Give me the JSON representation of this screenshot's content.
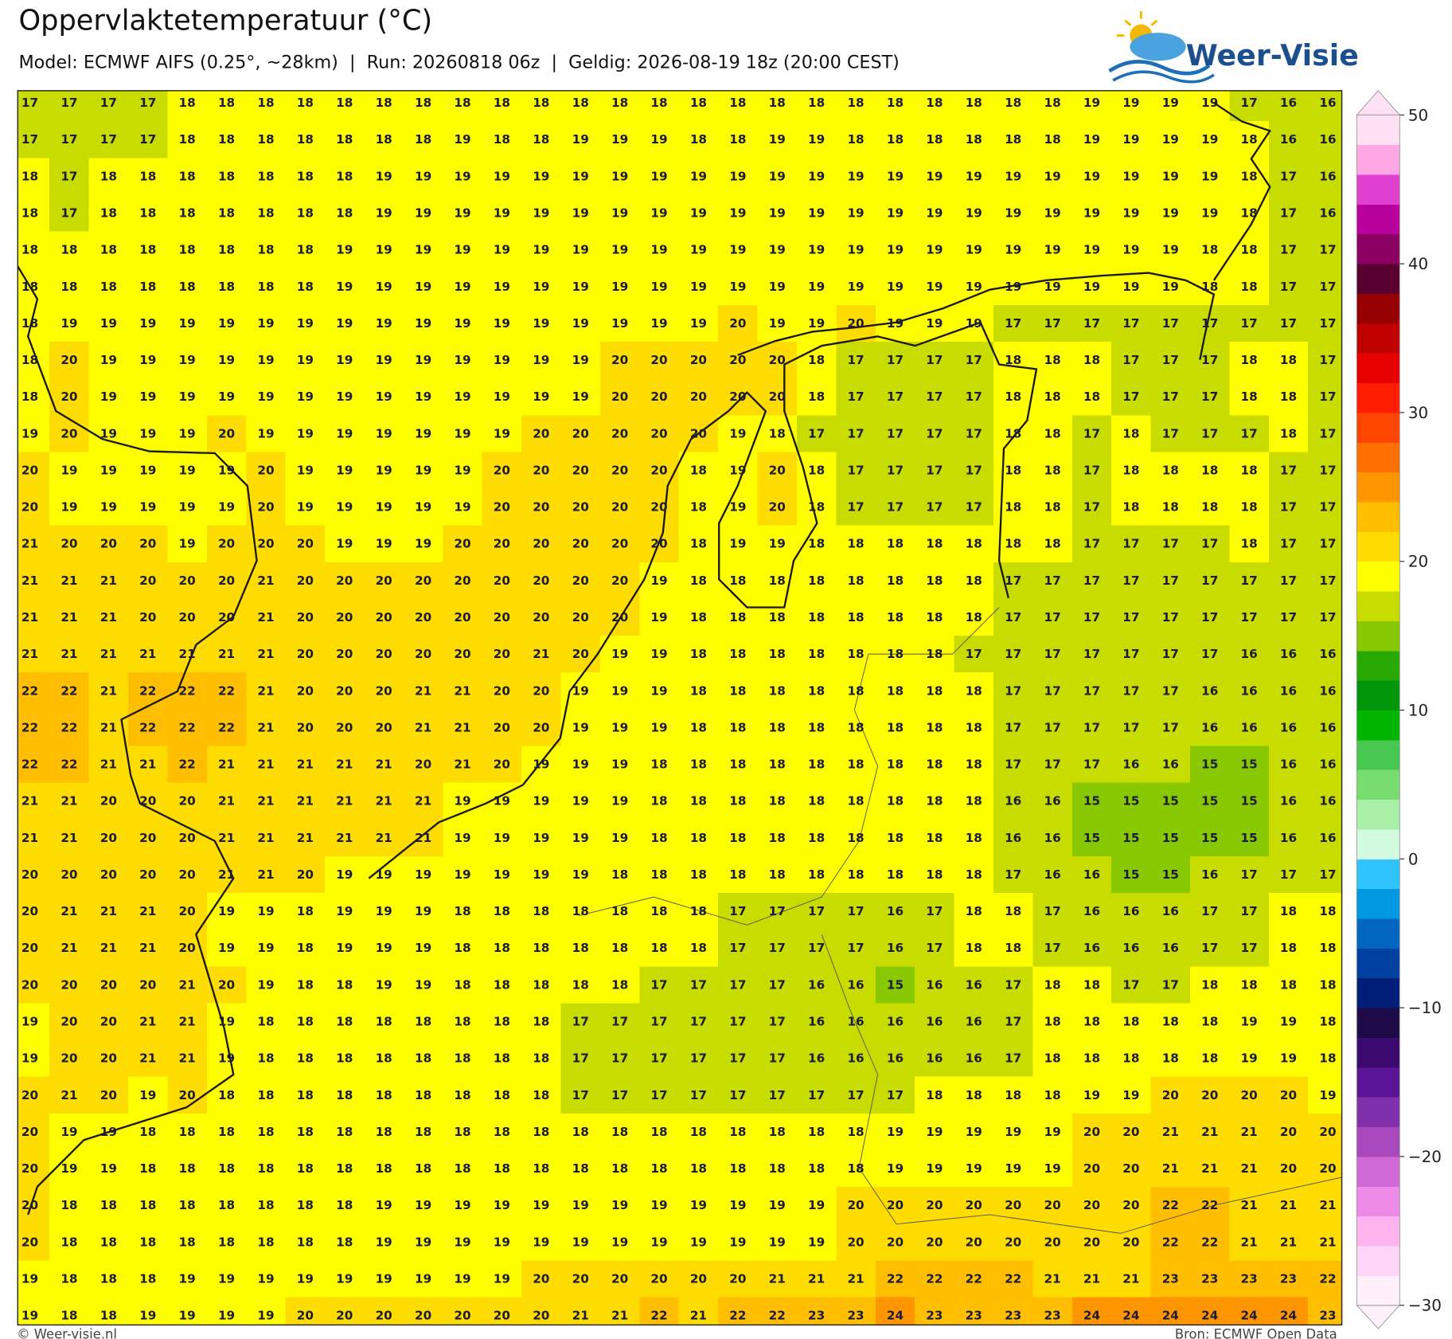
{
  "header": {
    "title": "Oppervlaktetemperatuur (°C)",
    "subtitle": "Model: ECMWF AIFS (0.25°, ~28km)  |  Run: 20260818 06z  |  Geldig: 2026-08-19 18z (20:00 CEST)"
  },
  "logo": "Weer-Visie",
  "grid": {
    "rows": [
      [
        17,
        17,
        17,
        17,
        18,
        18,
        18,
        18,
        18,
        18,
        18,
        18,
        18,
        18,
        18,
        18,
        18,
        18,
        18,
        18,
        18,
        18,
        18,
        18,
        18,
        18,
        18,
        19,
        19,
        19,
        19,
        17,
        16,
        16
      ],
      [
        17,
        17,
        17,
        17,
        18,
        18,
        18,
        18,
        18,
        18,
        18,
        19,
        18,
        18,
        19,
        19,
        19,
        18,
        18,
        19,
        19,
        18,
        18,
        18,
        18,
        18,
        18,
        19,
        19,
        19,
        19,
        18,
        16,
        16
      ],
      [
        18,
        17,
        18,
        18,
        18,
        18,
        18,
        18,
        18,
        19,
        19,
        19,
        19,
        19,
        19,
        19,
        19,
        19,
        19,
        19,
        19,
        19,
        19,
        19,
        19,
        19,
        19,
        19,
        19,
        19,
        19,
        18,
        17,
        16
      ],
      [
        18,
        17,
        18,
        18,
        18,
        18,
        18,
        18,
        18,
        19,
        19,
        19,
        19,
        19,
        19,
        19,
        19,
        19,
        19,
        19,
        19,
        19,
        19,
        19,
        19,
        19,
        19,
        19,
        19,
        19,
        19,
        18,
        17,
        16
      ],
      [
        18,
        18,
        18,
        18,
        18,
        18,
        18,
        18,
        19,
        19,
        19,
        19,
        19,
        19,
        19,
        19,
        19,
        19,
        19,
        19,
        19,
        19,
        19,
        19,
        19,
        19,
        19,
        19,
        19,
        19,
        18,
        18,
        17,
        17
      ],
      [
        18,
        18,
        18,
        18,
        18,
        18,
        18,
        18,
        19,
        19,
        19,
        19,
        19,
        19,
        19,
        19,
        19,
        19,
        19,
        19,
        19,
        19,
        19,
        19,
        19,
        19,
        19,
        19,
        19,
        19,
        18,
        18,
        17,
        17
      ],
      [
        18,
        19,
        19,
        19,
        19,
        19,
        19,
        19,
        19,
        19,
        19,
        19,
        19,
        19,
        19,
        19,
        19,
        19,
        20,
        19,
        19,
        20,
        19,
        19,
        19,
        17,
        17,
        17,
        17,
        17,
        17,
        17,
        17,
        17
      ],
      [
        18,
        20,
        19,
        19,
        19,
        19,
        19,
        19,
        19,
        19,
        19,
        19,
        19,
        19,
        19,
        20,
        20,
        20,
        20,
        20,
        18,
        17,
        17,
        17,
        17,
        18,
        18,
        18,
        17,
        17,
        17,
        18,
        18,
        17
      ],
      [
        18,
        20,
        19,
        19,
        19,
        19,
        19,
        19,
        19,
        19,
        19,
        19,
        19,
        19,
        19,
        20,
        20,
        20,
        20,
        20,
        18,
        17,
        17,
        17,
        17,
        18,
        18,
        18,
        17,
        17,
        17,
        18,
        18,
        17
      ],
      [
        19,
        20,
        19,
        19,
        19,
        20,
        19,
        19,
        19,
        19,
        19,
        19,
        19,
        20,
        20,
        20,
        20,
        20,
        19,
        18,
        17,
        17,
        17,
        17,
        17,
        18,
        18,
        17,
        18,
        17,
        17,
        17,
        18,
        17
      ],
      [
        20,
        19,
        19,
        19,
        19,
        19,
        20,
        19,
        19,
        19,
        19,
        19,
        20,
        20,
        20,
        20,
        20,
        18,
        19,
        20,
        18,
        17,
        17,
        17,
        17,
        18,
        18,
        17,
        18,
        18,
        18,
        18,
        17,
        17
      ],
      [
        20,
        19,
        19,
        19,
        19,
        19,
        20,
        19,
        19,
        19,
        19,
        19,
        20,
        20,
        20,
        20,
        20,
        18,
        19,
        20,
        18,
        17,
        17,
        17,
        17,
        18,
        18,
        17,
        18,
        18,
        18,
        18,
        17,
        17
      ],
      [
        21,
        20,
        20,
        20,
        19,
        20,
        20,
        20,
        19,
        19,
        19,
        20,
        20,
        20,
        20,
        20,
        20,
        18,
        19,
        19,
        18,
        18,
        18,
        18,
        18,
        18,
        18,
        17,
        17,
        17,
        17,
        18,
        17,
        17
      ],
      [
        21,
        21,
        21,
        20,
        20,
        20,
        21,
        20,
        20,
        20,
        20,
        20,
        20,
        20,
        20,
        20,
        19,
        18,
        18,
        18,
        18,
        18,
        18,
        18,
        18,
        17,
        17,
        17,
        17,
        17,
        17,
        17,
        17,
        17
      ],
      [
        21,
        21,
        21,
        20,
        20,
        20,
        21,
        20,
        20,
        20,
        20,
        20,
        20,
        20,
        20,
        20,
        19,
        18,
        18,
        18,
        18,
        18,
        18,
        18,
        18,
        17,
        17,
        17,
        17,
        17,
        17,
        17,
        17,
        17
      ],
      [
        21,
        21,
        21,
        21,
        21,
        21,
        21,
        20,
        20,
        20,
        20,
        20,
        20,
        21,
        20,
        19,
        19,
        18,
        18,
        18,
        18,
        18,
        18,
        18,
        17,
        17,
        17,
        17,
        17,
        17,
        17,
        16,
        16,
        16
      ],
      [
        22,
        22,
        21,
        22,
        22,
        22,
        21,
        20,
        20,
        20,
        21,
        21,
        20,
        20,
        19,
        19,
        19,
        18,
        18,
        18,
        18,
        18,
        18,
        18,
        18,
        17,
        17,
        17,
        17,
        17,
        16,
        16,
        16,
        16
      ],
      [
        22,
        22,
        21,
        22,
        22,
        22,
        21,
        20,
        20,
        20,
        21,
        21,
        20,
        20,
        19,
        19,
        19,
        18,
        18,
        18,
        18,
        18,
        18,
        18,
        18,
        17,
        17,
        17,
        17,
        17,
        16,
        16,
        16,
        16
      ],
      [
        22,
        22,
        21,
        21,
        22,
        21,
        21,
        21,
        21,
        21,
        20,
        21,
        20,
        19,
        19,
        19,
        18,
        18,
        18,
        18,
        18,
        18,
        18,
        18,
        18,
        17,
        17,
        17,
        16,
        16,
        15,
        15,
        16,
        16
      ],
      [
        21,
        21,
        20,
        20,
        20,
        21,
        21,
        21,
        21,
        21,
        21,
        19,
        19,
        19,
        19,
        19,
        18,
        18,
        18,
        18,
        18,
        18,
        18,
        18,
        18,
        16,
        16,
        15,
        15,
        15,
        15,
        15,
        16,
        16
      ],
      [
        21,
        21,
        20,
        20,
        20,
        21,
        21,
        21,
        21,
        21,
        21,
        19,
        19,
        19,
        19,
        19,
        18,
        18,
        18,
        18,
        18,
        18,
        18,
        18,
        18,
        16,
        16,
        15,
        15,
        15,
        15,
        15,
        16,
        16
      ],
      [
        20,
        20,
        20,
        20,
        20,
        21,
        21,
        20,
        19,
        19,
        19,
        19,
        19,
        19,
        19,
        18,
        18,
        18,
        18,
        18,
        18,
        18,
        18,
        18,
        18,
        17,
        16,
        16,
        15,
        15,
        16,
        17,
        17,
        17
      ],
      [
        20,
        21,
        21,
        21,
        20,
        19,
        19,
        18,
        19,
        19,
        19,
        18,
        18,
        18,
        18,
        18,
        18,
        18,
        17,
        17,
        17,
        17,
        16,
        17,
        18,
        18,
        17,
        16,
        16,
        16,
        17,
        17,
        18,
        18
      ],
      [
        20,
        21,
        21,
        21,
        20,
        19,
        19,
        18,
        19,
        19,
        19,
        18,
        18,
        18,
        18,
        18,
        18,
        18,
        17,
        17,
        17,
        17,
        16,
        17,
        18,
        18,
        17,
        16,
        16,
        16,
        17,
        17,
        18,
        18
      ],
      [
        20,
        20,
        20,
        20,
        21,
        20,
        19,
        18,
        18,
        19,
        19,
        18,
        18,
        18,
        18,
        18,
        17,
        17,
        17,
        17,
        16,
        16,
        15,
        16,
        16,
        17,
        18,
        18,
        17,
        17,
        18,
        18,
        18,
        18
      ],
      [
        19,
        20,
        20,
        21,
        21,
        19,
        18,
        18,
        18,
        18,
        18,
        18,
        18,
        18,
        17,
        17,
        17,
        17,
        17,
        17,
        16,
        16,
        16,
        16,
        16,
        17,
        18,
        18,
        18,
        18,
        18,
        19,
        19,
        18
      ],
      [
        19,
        20,
        20,
        21,
        21,
        19,
        18,
        18,
        18,
        18,
        18,
        18,
        18,
        18,
        17,
        17,
        17,
        17,
        17,
        17,
        16,
        16,
        16,
        16,
        16,
        17,
        18,
        18,
        18,
        18,
        18,
        19,
        19,
        18
      ],
      [
        20,
        21,
        20,
        19,
        20,
        18,
        18,
        18,
        18,
        18,
        18,
        18,
        18,
        18,
        17,
        17,
        17,
        17,
        17,
        17,
        17,
        17,
        17,
        18,
        18,
        18,
        18,
        19,
        19,
        20,
        20,
        20,
        20,
        19
      ],
      [
        20,
        19,
        19,
        18,
        18,
        18,
        18,
        18,
        18,
        18,
        18,
        18,
        18,
        18,
        18,
        18,
        18,
        18,
        18,
        18,
        18,
        18,
        19,
        19,
        19,
        19,
        19,
        20,
        20,
        21,
        21,
        21,
        20,
        20
      ],
      [
        20,
        19,
        19,
        18,
        18,
        18,
        18,
        18,
        18,
        18,
        18,
        18,
        18,
        18,
        18,
        18,
        18,
        18,
        18,
        18,
        18,
        18,
        19,
        19,
        19,
        19,
        19,
        20,
        20,
        21,
        21,
        21,
        20,
        20
      ],
      [
        20,
        18,
        18,
        18,
        18,
        18,
        18,
        18,
        18,
        19,
        19,
        19,
        19,
        19,
        19,
        19,
        19,
        19,
        19,
        19,
        19,
        20,
        20,
        20,
        20,
        20,
        20,
        20,
        20,
        22,
        22,
        21,
        21,
        21
      ],
      [
        20,
        18,
        18,
        18,
        18,
        18,
        18,
        18,
        18,
        19,
        19,
        19,
        19,
        19,
        19,
        19,
        19,
        19,
        19,
        19,
        19,
        20,
        20,
        20,
        20,
        20,
        20,
        20,
        20,
        22,
        22,
        21,
        21,
        21
      ],
      [
        19,
        18,
        18,
        18,
        19,
        19,
        19,
        19,
        19,
        19,
        19,
        19,
        19,
        20,
        20,
        20,
        20,
        20,
        20,
        21,
        21,
        21,
        22,
        22,
        22,
        22,
        21,
        21,
        21,
        23,
        23,
        23,
        23,
        22
      ],
      [
        19,
        18,
        18,
        19,
        19,
        19,
        19,
        20,
        20,
        20,
        20,
        20,
        20,
        20,
        21,
        21,
        22,
        21,
        22,
        22,
        23,
        23,
        24,
        23,
        23,
        23,
        23,
        24,
        24,
        24,
        24,
        24,
        24,
        23
      ]
    ]
  },
  "colorbar": {
    "range": [
      -30,
      50
    ],
    "ticks": [
      {
        "value": -30,
        "label": "−30"
      },
      {
        "value": -20,
        "label": "−20"
      },
      {
        "value": -10,
        "label": "−10"
      },
      0,
      10,
      20,
      30,
      40,
      50
    ],
    "colors": [
      "#fdf0fb",
      "#ffd6f7",
      "#ffb4f0",
      "#ee8ae8",
      "#d068d8",
      "#a848bc",
      "#8030aa",
      "#5c1496",
      "#3c0a6e",
      "#1e0a46",
      "#001e78",
      "#0040a0",
      "#0066c0",
      "#0098e0",
      "#30c4ff",
      "#d2fade",
      "#a8f0a8",
      "#78dc6e",
      "#48c850",
      "#00b400",
      "#00960a",
      "#28a800",
      "#88c800",
      "#c8dc00",
      "#ffff00",
      "#ffdc00",
      "#ffbe00",
      "#ff9600",
      "#ff6e00",
      "#ff4600",
      "#ff1e00",
      "#e60000",
      "#c00000",
      "#960000",
      "#5a0030",
      "#8c0064",
      "#b8009c",
      "#e040d0",
      "#ffa6e4",
      "#ffe0f4"
    ]
  },
  "footer": {
    "credit": "© Weer-visie.nl",
    "source": "Bron: ECMWF Open Data"
  }
}
